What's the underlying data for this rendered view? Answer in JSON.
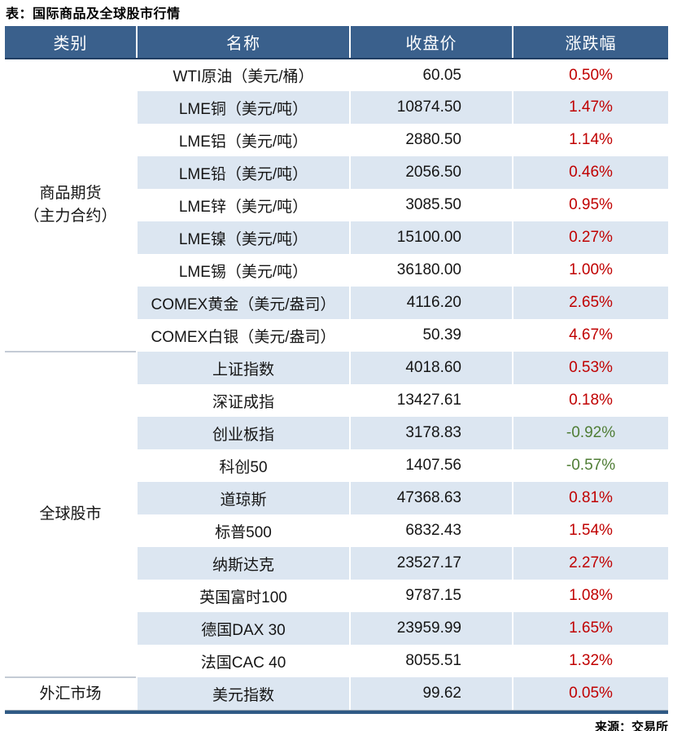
{
  "colors": {
    "header_bg": "#3A608C",
    "header_text": "#FFFFFF",
    "header_underline": "#203E63",
    "stripe_bg": "#DCE6F1",
    "up_red": "#C00000",
    "down_green": "#4F7D35",
    "section_divider": "#C4CBD5",
    "bottom_bar": "#2F5A85"
  },
  "chart_data": {
    "type": "table",
    "title": "表：国际商品及全球股市行情",
    "columns": [
      "类别",
      "名称",
      "收盘价",
      "涨跌幅"
    ],
    "sections": [
      {
        "category_lines": [
          "商品期货",
          "（主力合约）"
        ],
        "rows": [
          {
            "name": "WTI原油（美元/桶）",
            "close": "60.05",
            "change": "0.50%"
          },
          {
            "name": "LME铜（美元/吨）",
            "close": "10874.50",
            "change": "1.47%"
          },
          {
            "name": "LME铝（美元/吨）",
            "close": "2880.50",
            "change": "1.14%"
          },
          {
            "name": "LME铅（美元/吨）",
            "close": "2056.50",
            "change": "0.46%"
          },
          {
            "name": "LME锌（美元/吨）",
            "close": "3085.50",
            "change": "0.95%"
          },
          {
            "name": "LME镍（美元/吨）",
            "close": "15100.00",
            "change": "0.27%"
          },
          {
            "name": "LME锡（美元/吨）",
            "close": "36180.00",
            "change": "1.00%"
          },
          {
            "name": "COMEX黄金（美元/盎司）",
            "close": "4116.20",
            "change": "2.65%"
          },
          {
            "name": "COMEX白银（美元/盎司）",
            "close": "50.39",
            "change": "4.67%"
          }
        ]
      },
      {
        "category_lines": [
          "全球股市"
        ],
        "rows": [
          {
            "name": "上证指数",
            "close": "4018.60",
            "change": "0.53%"
          },
          {
            "name": "深证成指",
            "close": "13427.61",
            "change": "0.18%"
          },
          {
            "name": "创业板指",
            "close": "3178.83",
            "change": "-0.92%"
          },
          {
            "name": "科创50",
            "close": "1407.56",
            "change": "-0.57%"
          },
          {
            "name": "道琼斯",
            "close": "47368.63",
            "change": "0.81%"
          },
          {
            "name": "标普500",
            "close": "6832.43",
            "change": "1.54%"
          },
          {
            "name": "纳斯达克",
            "close": "23527.17",
            "change": "2.27%"
          },
          {
            "name": "英国富时100",
            "close": "9787.15",
            "change": "1.08%"
          },
          {
            "name": "德国DAX 30",
            "close": "23959.99",
            "change": "1.65%"
          },
          {
            "name": "法国CAC 40",
            "close": "8055.51",
            "change": "1.32%"
          }
        ]
      },
      {
        "category_lines": [
          "外汇市场"
        ],
        "rows": [
          {
            "name": "美元指数",
            "close": "99.62",
            "change": "0.05%"
          }
        ]
      }
    ],
    "source": "来源：交易所"
  }
}
